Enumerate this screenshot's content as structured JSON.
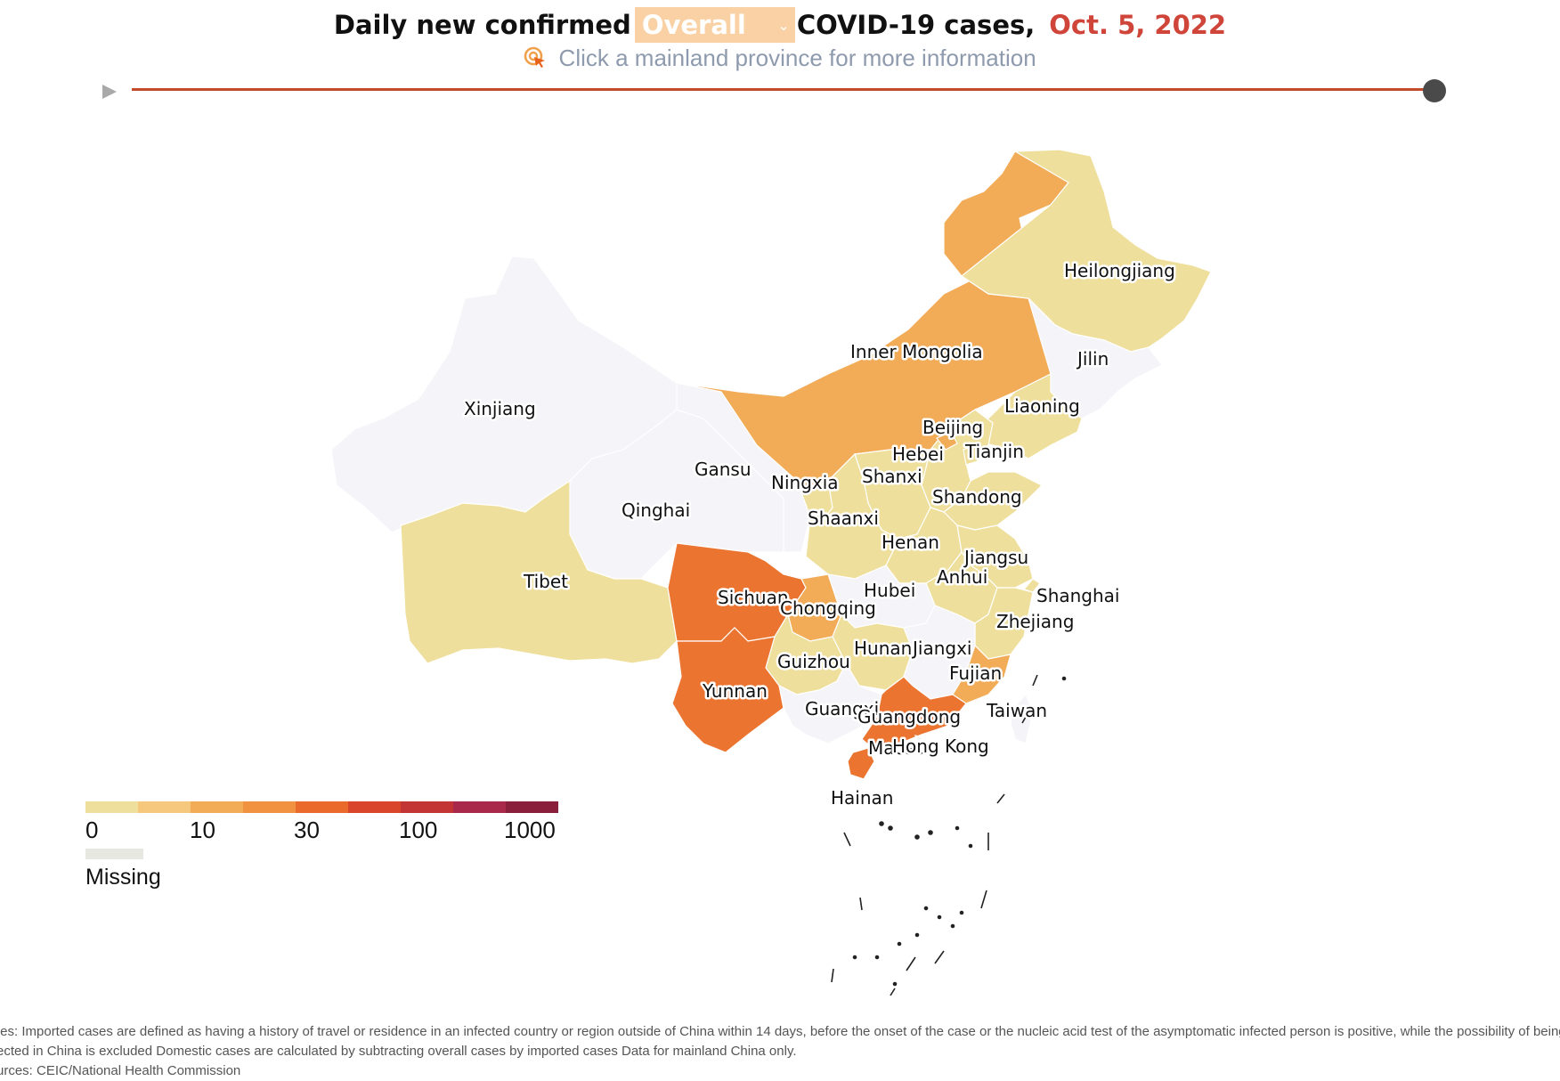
{
  "header": {
    "title_prefix": "Daily new confirmed",
    "selector_value": "Overall",
    "title_suffix": "COVID-19 cases,",
    "date": "Oct. 5, 2022",
    "date_color": "#d0453a",
    "hint": "Click a mainland province for more information"
  },
  "timeline": {
    "play_icon": "play-icon",
    "position": 1.0
  },
  "map": {
    "provinces": [
      {
        "name": "Heilongjiang",
        "label": "Heilongjiang",
        "level": "0-10",
        "color": "#efdf9c"
      },
      {
        "name": "Jilin",
        "label": "Jilin",
        "level": "missing",
        "color": "#f4f4f9"
      },
      {
        "name": "Liaoning",
        "label": "Liaoning",
        "level": "0-10",
        "color": "#efdf9c"
      },
      {
        "name": "Inner Mongolia",
        "label": "Inner Mongolia",
        "level": "10-30",
        "color": "#f2ab56"
      },
      {
        "name": "Beijing",
        "label": "Beijing",
        "level": "10-30",
        "color": "#f2ab56"
      },
      {
        "name": "Tianjin",
        "label": "Tianjin",
        "level": "0-10",
        "color": "#efdf9c"
      },
      {
        "name": "Hebei",
        "label": "Hebei",
        "level": "0-10",
        "color": "#efdf9c"
      },
      {
        "name": "Shanxi",
        "label": "Shanxi",
        "level": "0-10",
        "color": "#efdf9c"
      },
      {
        "name": "Shandong",
        "label": "Shandong",
        "level": "0-10",
        "color": "#efdf9c"
      },
      {
        "name": "Ningxia",
        "label": "Ningxia",
        "level": "0-10",
        "color": "#efdf9c"
      },
      {
        "name": "Gansu",
        "label": "Gansu",
        "level": "missing",
        "color": "#f4f4f9"
      },
      {
        "name": "Xinjiang",
        "label": "Xinjiang",
        "level": "missing",
        "color": "#f4f4f9"
      },
      {
        "name": "Qinghai",
        "label": "Qinghai",
        "level": "missing",
        "color": "#f4f4f9"
      },
      {
        "name": "Tibet",
        "label": "Tibet",
        "level": "0-10",
        "color": "#efdf9c"
      },
      {
        "name": "Shaanxi",
        "label": "Shaanxi",
        "level": "0-10",
        "color": "#efdf9c"
      },
      {
        "name": "Henan",
        "label": "Henan",
        "level": "0-10",
        "color": "#efdf9c"
      },
      {
        "name": "Jiangsu",
        "label": "Jiangsu",
        "level": "0-10",
        "color": "#efdf9c"
      },
      {
        "name": "Anhui",
        "label": "Anhui",
        "level": "0-10",
        "color": "#efdf9c"
      },
      {
        "name": "Shanghai",
        "label": "Shanghai",
        "level": "0-10",
        "color": "#efdf9c"
      },
      {
        "name": "Hubei",
        "label": "Hubei",
        "level": "missing",
        "color": "#f4f4f9"
      },
      {
        "name": "Sichuan",
        "label": "Sichuan",
        "level": "30-100",
        "color": "#eb7530"
      },
      {
        "name": "Chongqing",
        "label": "Chongqing",
        "level": "10-30",
        "color": "#f2ab56"
      },
      {
        "name": "Zhejiang",
        "label": "Zhejiang",
        "level": "0-10",
        "color": "#efdf9c"
      },
      {
        "name": "Hunan",
        "label": "Hunan",
        "level": "0-10",
        "color": "#efdf9c"
      },
      {
        "name": "Jiangxi",
        "label": "Jiangxi",
        "level": "missing",
        "color": "#f4f4f9"
      },
      {
        "name": "Guizhou",
        "label": "Guizhou",
        "level": "0-10",
        "color": "#efdf9c"
      },
      {
        "name": "Fujian",
        "label": "Fujian",
        "level": "10-30",
        "color": "#f2ab56"
      },
      {
        "name": "Yunnan",
        "label": "Yunnan",
        "level": "30-100",
        "color": "#eb7530"
      },
      {
        "name": "Guangxi",
        "label": "Guangxi",
        "level": "missing",
        "color": "#f4f4f9"
      },
      {
        "name": "Guangdong",
        "label": "Guangdong",
        "level": "30-100",
        "color": "#eb7530"
      },
      {
        "name": "Taiwan",
        "label": "Taiwan",
        "level": "missing",
        "color": "#f4f4f9"
      },
      {
        "name": "Macau",
        "label": "Macau",
        "level": "missing",
        "color": "#f4f4f9"
      },
      {
        "name": "Hong Kong",
        "label": "Hong Kong",
        "level": "missing",
        "color": "#f4f4f9"
      },
      {
        "name": "Hainan",
        "label": "Hainan",
        "level": "30-100",
        "color": "#eb7530"
      }
    ]
  },
  "legend": {
    "colors": [
      "#efdf9c",
      "#f5c87e",
      "#f2ab56",
      "#f09240",
      "#ea6a2c",
      "#d9452b",
      "#c23534",
      "#a8294a",
      "#8a1f3c"
    ],
    "ticks": [
      "0",
      "10",
      "30",
      "100",
      "1000"
    ],
    "missing_color": "#e8e8e3",
    "missing_label": "Missing"
  },
  "footer": {
    "note_line1": "tes: Imported cases are defined as having a history of travel or residence in an infected country or region outside of China within 14 days, before the onset of the case or the nucleic acid test of the asymptomatic infected person is positive, while the possibility of being",
    "note_line2": "ected in China is excluded Domestic cases are calculated by subtracting overall cases by imported cases Data for mainland China only.",
    "sources": "urces: CEIC/National Health Commission"
  }
}
